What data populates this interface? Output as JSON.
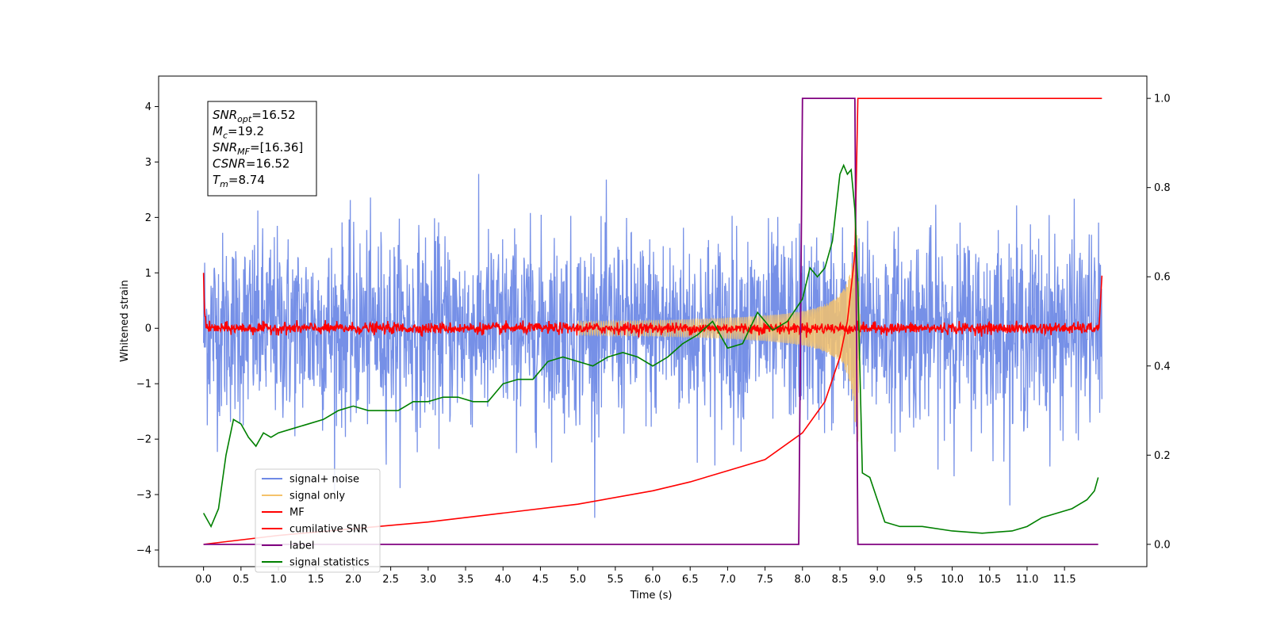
{
  "chart_data": {
    "type": "line",
    "title": "",
    "xlabel": "Time (s)",
    "ylabel": "Whitened strain",
    "xlim": [
      -0.6,
      12.6
    ],
    "ylim": [
      -4.3,
      4.55
    ],
    "y2lim": [
      -0.05,
      1.05
    ],
    "x_ticks": [
      "0.0",
      "0.5",
      "1.0",
      "1.5",
      "2.0",
      "2.5",
      "3.0",
      "3.5",
      "4.0",
      "4.5",
      "5.0",
      "5.5",
      "6.0",
      "6.5",
      "7.0",
      "7.5",
      "8.0",
      "8.5",
      "9.0",
      "9.5",
      "10.0",
      "10.5",
      "11.0",
      "11.5"
    ],
    "y_ticks": [
      "4",
      "3",
      "2",
      "1",
      "0",
      "−1",
      "−2",
      "−3",
      "−4"
    ],
    "y2_ticks": [
      "1.0",
      "0.8",
      "0.6",
      "0.4",
      "0.2",
      "0.0"
    ],
    "grid": false,
    "legend_position": "lower-left",
    "series": [
      {
        "name": "signal+ noise",
        "color": "#6f8ae6",
        "axis": "left",
        "x_range": [
          0,
          12
        ],
        "amplitude_std": 0.85
      },
      {
        "name": "signal only",
        "color": "#f5c26b",
        "axis": "left",
        "chirp_peak_x": 8.74,
        "chirp_peak_amplitude": 2.3
      },
      {
        "name": "MF",
        "color": "#ff0000",
        "axis": "left",
        "x_range": [
          0,
          12
        ],
        "baseline": 0.0
      },
      {
        "name": "cumilative SNR",
        "color": "#ff0000",
        "axis": "right",
        "x": [
          0,
          1,
          2,
          3,
          4,
          5,
          6,
          6.5,
          7,
          7.5,
          8,
          8.3,
          8.5,
          8.6,
          8.7,
          8.74,
          12
        ],
        "values": [
          0.0,
          0.02,
          0.035,
          0.05,
          0.07,
          0.09,
          0.12,
          0.14,
          0.165,
          0.19,
          0.25,
          0.32,
          0.42,
          0.5,
          0.65,
          1.0,
          1.0
        ]
      },
      {
        "name": "label",
        "color": "#800080",
        "axis": "right",
        "x": [
          0,
          7.95,
          8.0,
          8.7,
          8.74,
          11.95
        ],
        "values": [
          0,
          0,
          1,
          1,
          0,
          0
        ]
      },
      {
        "name": "signal statistics",
        "color": "#008000",
        "axis": "right",
        "x": [
          0,
          0.1,
          0.2,
          0.3,
          0.4,
          0.5,
          0.6,
          0.7,
          0.8,
          0.9,
          1.0,
          1.2,
          1.4,
          1.6,
          1.8,
          2.0,
          2.2,
          2.4,
          2.6,
          2.8,
          3.0,
          3.2,
          3.4,
          3.6,
          3.8,
          4.0,
          4.2,
          4.4,
          4.6,
          4.8,
          5.0,
          5.2,
          5.4,
          5.6,
          5.8,
          6.0,
          6.2,
          6.4,
          6.6,
          6.8,
          7.0,
          7.2,
          7.4,
          7.6,
          7.8,
          8.0,
          8.1,
          8.2,
          8.3,
          8.4,
          8.5,
          8.55,
          8.6,
          8.65,
          8.7,
          8.74,
          8.8,
          8.9,
          9.0,
          9.1,
          9.3,
          9.6,
          10.0,
          10.4,
          10.8,
          11.0,
          11.2,
          11.4,
          11.6,
          11.8,
          11.9,
          11.95
        ],
        "values": [
          0.07,
          0.04,
          0.08,
          0.2,
          0.28,
          0.27,
          0.24,
          0.22,
          0.25,
          0.24,
          0.25,
          0.26,
          0.27,
          0.28,
          0.3,
          0.31,
          0.3,
          0.3,
          0.3,
          0.32,
          0.32,
          0.33,
          0.33,
          0.32,
          0.32,
          0.36,
          0.37,
          0.37,
          0.41,
          0.42,
          0.41,
          0.4,
          0.42,
          0.43,
          0.42,
          0.4,
          0.42,
          0.45,
          0.47,
          0.5,
          0.44,
          0.45,
          0.52,
          0.48,
          0.5,
          0.55,
          0.62,
          0.6,
          0.62,
          0.68,
          0.83,
          0.85,
          0.83,
          0.84,
          0.75,
          0.58,
          0.16,
          0.15,
          0.1,
          0.05,
          0.04,
          0.04,
          0.03,
          0.025,
          0.03,
          0.04,
          0.06,
          0.07,
          0.08,
          0.1,
          0.12,
          0.15
        ]
      }
    ],
    "annotations": [
      {
        "prefix": "SNR",
        "sub": "opt",
        "suffix": "=16.52"
      },
      {
        "prefix": "M",
        "sub": "c",
        "suffix": "=19.2"
      },
      {
        "prefix": "SNR",
        "sub": "MF",
        "suffix": "=[16.36]"
      },
      {
        "prefix": "CSNR",
        "sub": "",
        "suffix": "=16.52"
      },
      {
        "prefix": "T",
        "sub": "m",
        "suffix": "=8.74"
      }
    ]
  }
}
